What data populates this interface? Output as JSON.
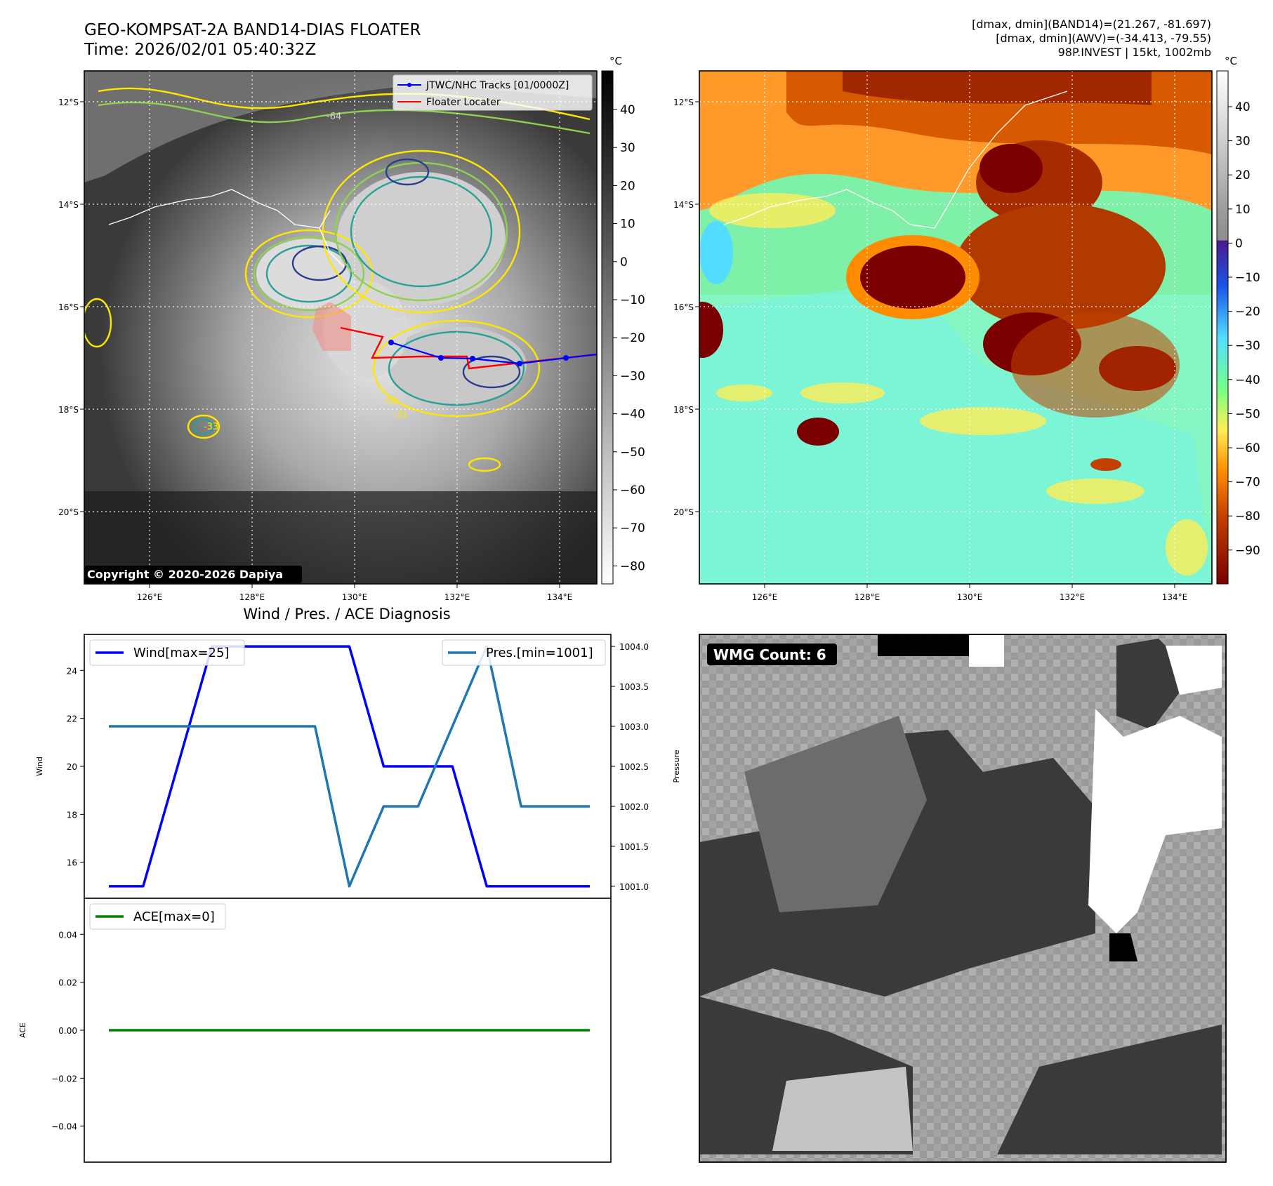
{
  "header": {
    "title_line1": "GEO-KOMPSAT-2A BAND14-DIAS FLOATER",
    "title_line2": "Time: 2026/02/01 05:40:32Z",
    "stats_line1": "[dmax, dmin](BAND14)=(21.267, -81.697)",
    "stats_line2": "[dmax, dmin](AWV)=(-34.413, -79.55)",
    "stats_line3": "98P.INVEST | 15kt, 1002mb"
  },
  "colors": {
    "wind_line": "#0000ff",
    "pressure_line": "#1f77b4",
    "ace_line": "#008000",
    "track_blue": "#0000ff",
    "floater_red": "#ff0000"
  },
  "maps": {
    "lon_ticks": [
      "126°E",
      "128°E",
      "130°E",
      "132°E",
      "134°E"
    ],
    "lat_ticks": [
      "12°S",
      "14°S",
      "16°S",
      "18°S",
      "20°S"
    ],
    "ir_panel": {
      "copyright": "Copyright © 2020-2026 Dapiya",
      "legend": {
        "tracks": "JTWC/NHC Tracks [01/0000Z]",
        "floater": "Floater Locater"
      },
      "colorbar": {
        "unit": "°C",
        "ticks": [
          "40",
          "30",
          "20",
          "10",
          "0",
          "−10",
          "−20",
          "−30",
          "−40",
          "−50",
          "−60",
          "−70",
          "−80"
        ]
      },
      "contour_labels": [
        "-64",
        "-64",
        "-64",
        "-30",
        "-31",
        "-33"
      ]
    },
    "awv_panel": {
      "colorbar": {
        "unit": "°C",
        "ticks": [
          "40",
          "30",
          "20",
          "10",
          "0",
          "−10",
          "−20",
          "−30",
          "−40",
          "−50",
          "−60",
          "−70",
          "−80",
          "−90"
        ]
      }
    }
  },
  "chart_data": [
    {
      "type": "line",
      "title": "Wind / Pres. / ACE Diagnosis",
      "x": [
        0,
        1,
        2,
        3,
        4,
        5,
        6,
        7,
        8,
        9,
        10,
        11,
        12,
        13,
        14
      ],
      "ylabel": "Wind",
      "ylim": [
        14.5,
        25.5
      ],
      "yticks": [
        16,
        18,
        20,
        22,
        24
      ],
      "series": [
        {
          "name": "Wind[max=25]",
          "values": [
            15,
            15,
            20,
            25,
            25,
            25,
            25,
            25,
            20,
            20,
            20,
            15,
            15,
            15,
            15
          ]
        }
      ],
      "legend": "top-left"
    },
    {
      "type": "line",
      "ylabel": "Pressure",
      "ylim": [
        1000.85,
        1004.15
      ],
      "yticks": [
        "1001.0",
        "1001.5",
        "1002.0",
        "1002.5",
        "1003.0",
        "1003.5",
        "1004.0"
      ],
      "series": [
        {
          "name": "Pres.[min=1001]",
          "values": [
            1003,
            1003,
            1003,
            1003,
            1003,
            1003,
            1003,
            1001,
            1002,
            1002,
            1003,
            1004,
            1002,
            1002,
            1002
          ]
        }
      ],
      "legend": "top-right"
    },
    {
      "type": "line",
      "ylabel": "ACE",
      "ylim": [
        -0.055,
        0.055
      ],
      "yticks": [
        "0.04",
        "0.02",
        "0.00",
        "−0.02",
        "−0.04"
      ],
      "series": [
        {
          "name": "ACE[max=0]",
          "values": [
            0,
            0,
            0,
            0,
            0,
            0,
            0,
            0,
            0,
            0,
            0,
            0,
            0,
            0,
            0
          ]
        }
      ],
      "legend": "top-left"
    }
  ],
  "wmg_panel": {
    "badge": "WMG Count: 6"
  }
}
